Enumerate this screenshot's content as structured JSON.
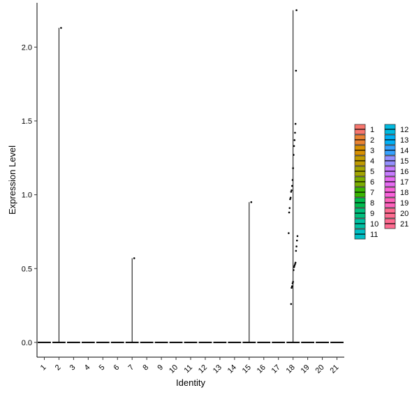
{
  "chart_data": {
    "type": "violin",
    "xlabel": "Identity",
    "ylabel": "Expression Level",
    "categories": [
      "1",
      "2",
      "3",
      "4",
      "5",
      "6",
      "7",
      "8",
      "9",
      "10",
      "11",
      "12",
      "13",
      "14",
      "15",
      "16",
      "17",
      "18",
      "19",
      "20",
      "21"
    ],
    "ylim": [
      -0.1,
      2.3
    ],
    "yticks": [
      0.0,
      0.5,
      1.0,
      1.5,
      2.0
    ],
    "ytick_labels": [
      "0.0",
      "0.5",
      "1.0",
      "1.5",
      "2.0"
    ],
    "grid": false,
    "legend_position": "right",
    "colors": [
      "#F8766D",
      "#EA8331",
      "#D89000",
      "#C09B00",
      "#A3A500",
      "#7CAE00",
      "#39B600",
      "#00BB4E",
      "#00BF7D",
      "#00C1A3",
      "#00BFC4",
      "#00BAE0",
      "#00B0F6",
      "#35A2FF",
      "#9590FF",
      "#C77CFF",
      "#E76BF3",
      "#FA62DB",
      "#FF62BC",
      "#FF6C91",
      "#FF6C91"
    ],
    "violin_max": {
      "2": 2.13,
      "7": 0.57,
      "15": 0.95,
      "18": 2.25
    },
    "points": [
      {
        "group": "2",
        "y": 2.13
      },
      {
        "group": "7",
        "y": 0.57
      },
      {
        "group": "15",
        "y": 0.95
      },
      {
        "group": "18",
        "y": 2.25
      },
      {
        "group": "18",
        "y": 1.84
      },
      {
        "group": "18",
        "y": 1.48
      },
      {
        "group": "18",
        "y": 1.42
      },
      {
        "group": "18",
        "y": 1.37
      },
      {
        "group": "18",
        "y": 1.33
      },
      {
        "group": "18",
        "y": 1.27
      },
      {
        "group": "18",
        "y": 1.18
      },
      {
        "group": "18",
        "y": 1.1
      },
      {
        "group": "18",
        "y": 1.06
      },
      {
        "group": "18",
        "y": 1.03
      },
      {
        "group": "18",
        "y": 1.02
      },
      {
        "group": "18",
        "y": 0.98
      },
      {
        "group": "18",
        "y": 0.97
      },
      {
        "group": "18",
        "y": 0.91
      },
      {
        "group": "18",
        "y": 0.88
      },
      {
        "group": "18",
        "y": 0.74
      },
      {
        "group": "18",
        "y": 0.72
      },
      {
        "group": "18",
        "y": 0.69
      },
      {
        "group": "18",
        "y": 0.65
      },
      {
        "group": "18",
        "y": 0.62
      },
      {
        "group": "18",
        "y": 0.54
      },
      {
        "group": "18",
        "y": 0.53
      },
      {
        "group": "18",
        "y": 0.52
      },
      {
        "group": "18",
        "y": 0.51
      },
      {
        "group": "18",
        "y": 0.49
      },
      {
        "group": "18",
        "y": 0.41
      },
      {
        "group": "18",
        "y": 0.4
      },
      {
        "group": "18",
        "y": 0.38
      },
      {
        "group": "18",
        "y": 0.37
      },
      {
        "group": "18",
        "y": 0.26
      }
    ]
  }
}
